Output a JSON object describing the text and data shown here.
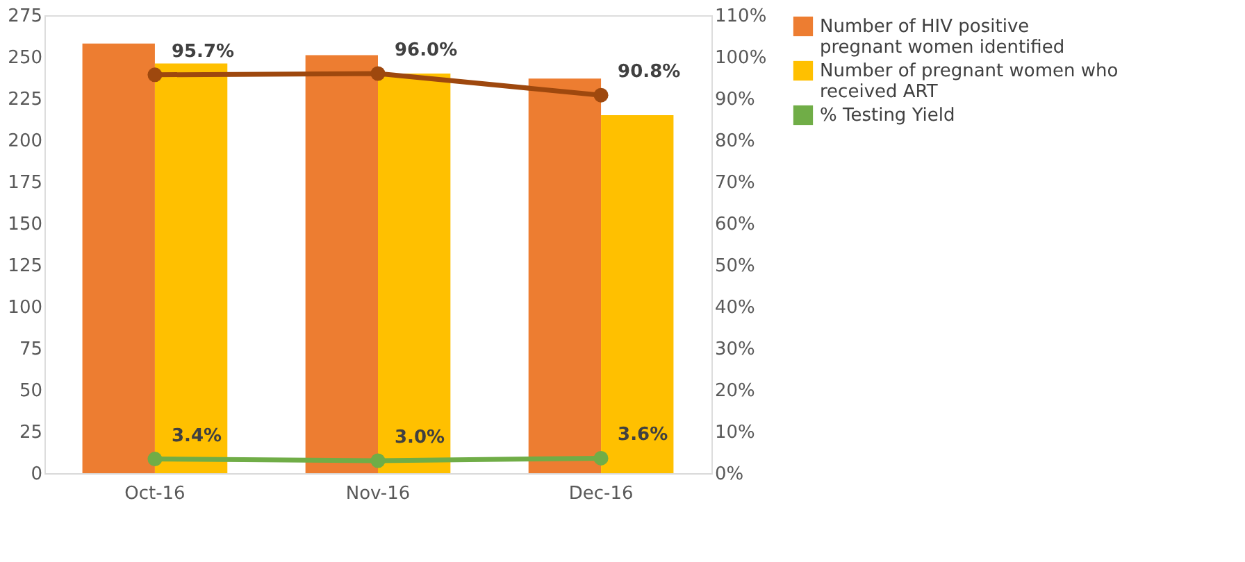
{
  "chart_data": {
    "type": "bar",
    "categories": [
      "Oct-16",
      "Nov-16",
      "Dec-16"
    ],
    "series": [
      {
        "name": "Number of HIV positive pregnant women identified",
        "color": "#ed7d31",
        "values": [
          258,
          251,
          237
        ]
      },
      {
        "name": "Number of pregnant women who received ART",
        "color": "#ffc000",
        "values": [
          246,
          240,
          215
        ]
      },
      {
        "type": "line",
        "axis": "y2",
        "color": "#9e480e",
        "values": [
          95.7,
          96.0,
          90.8
        ],
        "value_labels": [
          "95.7%",
          "96.0%",
          "90.8%"
        ]
      },
      {
        "name": "% Testing Yield",
        "type": "line",
        "axis": "y2",
        "color": "#70ad47",
        "values": [
          3.4,
          3.0,
          3.6
        ],
        "value_labels": [
          "3.4%",
          "3.0%",
          "3.6%"
        ]
      }
    ],
    "ylim": [
      0,
      275
    ],
    "yticks": [
      0,
      25,
      50,
      75,
      100,
      125,
      150,
      175,
      200,
      225,
      250,
      275
    ],
    "y2lim": [
      0,
      110
    ],
    "y2ticks": [
      {
        "value": 0,
        "label": "0%"
      },
      {
        "value": 10,
        "label": "10%"
      },
      {
        "value": 20,
        "label": "20%"
      },
      {
        "value": 30,
        "label": "30%"
      },
      {
        "value": 40,
        "label": "40%"
      },
      {
        "value": 50,
        "label": "50%"
      },
      {
        "value": 60,
        "label": "60%"
      },
      {
        "value": 70,
        "label": "70%"
      },
      {
        "value": 80,
        "label": "80%"
      },
      {
        "value": 90,
        "label": "90%"
      },
      {
        "value": 100,
        "label": "100%"
      },
      {
        "value": 110,
        "label": "110%"
      }
    ],
    "marker": "circle",
    "legend": "right",
    "grid": false
  }
}
